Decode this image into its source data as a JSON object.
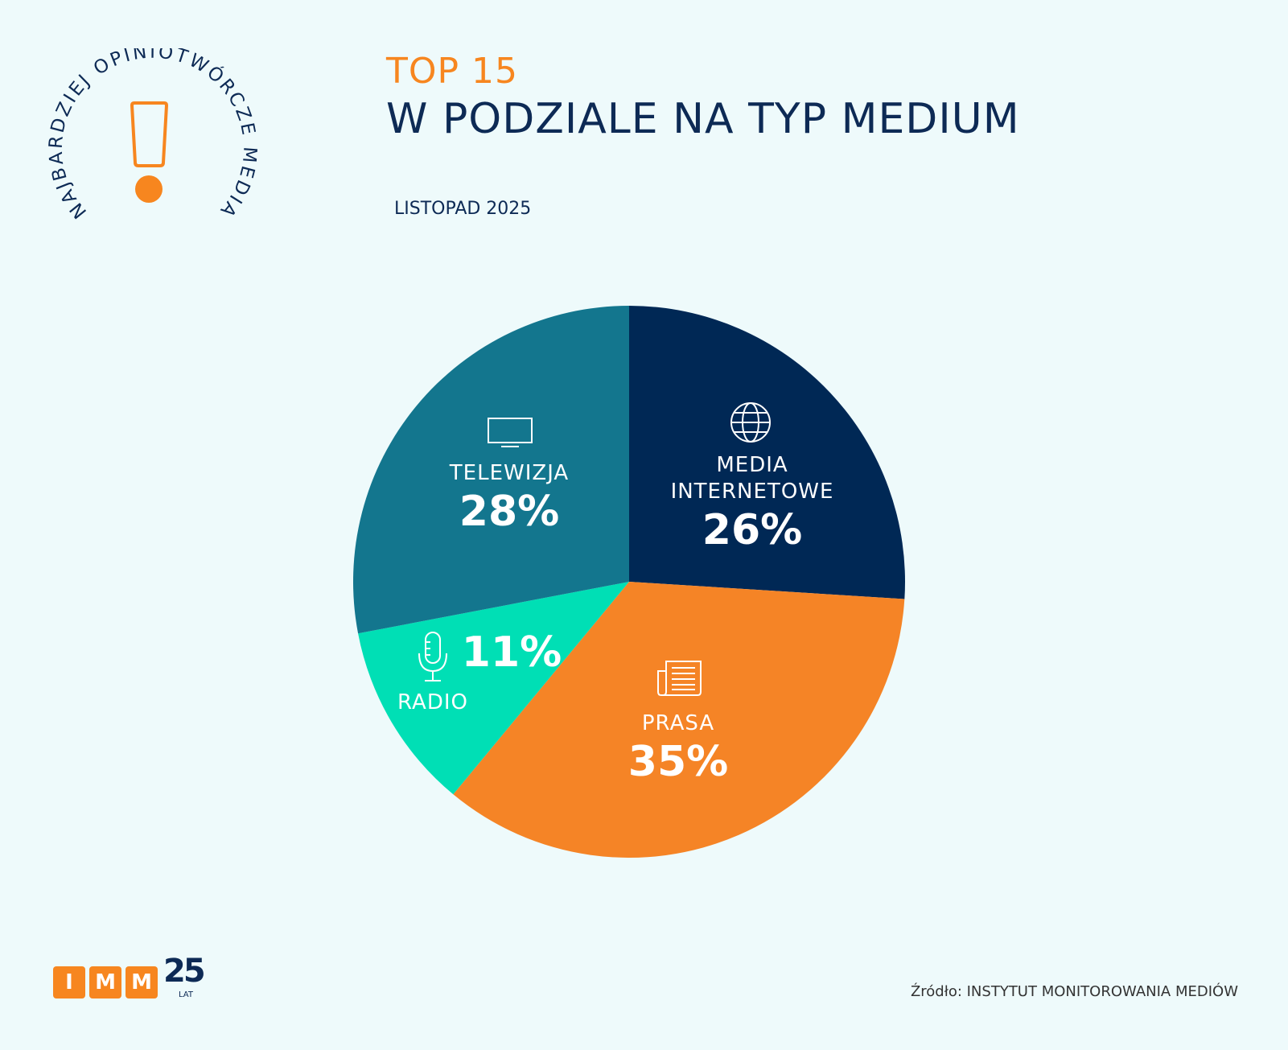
{
  "header": {
    "top": "TOP 15",
    "title": "W PODZIALE NA TYP MEDIUM",
    "date": "LISTOPAD 2025"
  },
  "badge": {
    "text": "NAJBARDZIEJ OPINIOTWÓRCZE MEDIA",
    "icon": "exclamation-icon"
  },
  "chart_data": {
    "type": "pie",
    "start": "top",
    "direction": "clockwise",
    "slices": [
      {
        "label": "MEDIA INTERNETOWE",
        "value": 26,
        "display": "26%",
        "color": "#002855",
        "icon": "globe-icon"
      },
      {
        "label": "PRASA",
        "value": 35,
        "display": "35%",
        "color": "#f58426",
        "icon": "newspaper-icon"
      },
      {
        "label": "RADIO",
        "value": 11,
        "display": "11%",
        "color": "#00dfb5",
        "icon": "microphone-icon"
      },
      {
        "label": "TELEWIZJA",
        "value": 28,
        "display": "28%",
        "color": "#13768e",
        "icon": "tv-icon"
      }
    ]
  },
  "footer": {
    "logo_letters": [
      "I",
      "M",
      "M"
    ],
    "logo_number": "25",
    "logo_suffix": "LAT",
    "source": "Źródło: INSTYTUT MONITOROWANIA MEDIÓW"
  }
}
